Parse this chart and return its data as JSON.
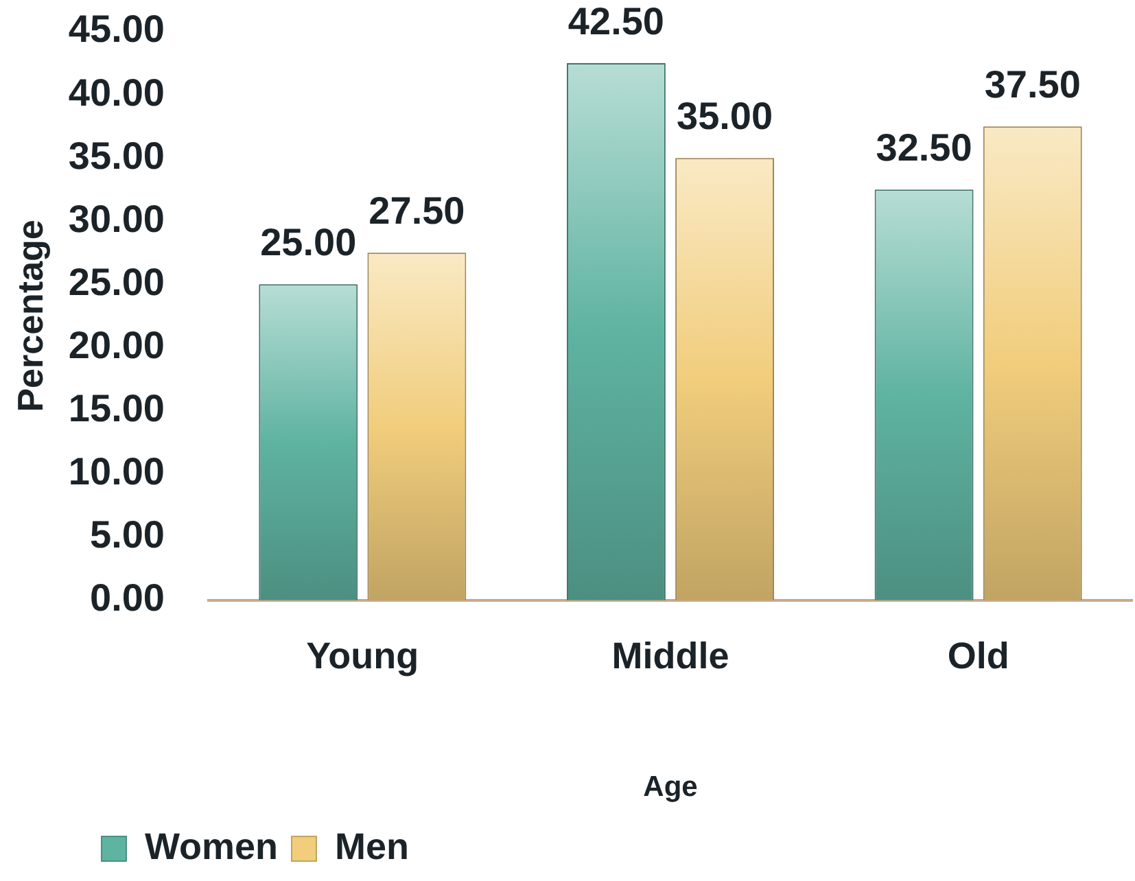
{
  "chart_data": {
    "type": "bar",
    "xlabel": "Age",
    "ylabel": "Percentage",
    "categories": [
      "Young",
      "Middle",
      "Old"
    ],
    "series": [
      {
        "name": "Women",
        "color": "#5fb3a1",
        "values": [
          25,
          42.5,
          32.5
        ],
        "value_labels": [
          "25.00",
          "42.50",
          "32.50"
        ]
      },
      {
        "name": "Men",
        "color": "#f1cd7c",
        "values": [
          27.5,
          35,
          37.5
        ],
        "value_labels": [
          "27.50",
          "35.00",
          "37.50"
        ]
      }
    ],
    "ylim": [
      0,
      45
    ],
    "yticks": [
      {
        "value": 0,
        "label": "0.00"
      },
      {
        "value": 5,
        "label": "5.00"
      },
      {
        "value": 10,
        "label": "10.00"
      },
      {
        "value": 15,
        "label": "15.00"
      },
      {
        "value": 20,
        "label": "20.00"
      },
      {
        "value": 25,
        "label": "25.00"
      },
      {
        "value": 30,
        "label": "30.00"
      },
      {
        "value": 35,
        "label": "35.00"
      },
      {
        "value": 40,
        "label": "40.00"
      },
      {
        "value": 45,
        "label": "45.00"
      }
    ],
    "grid": false,
    "legend": "bottom left"
  }
}
